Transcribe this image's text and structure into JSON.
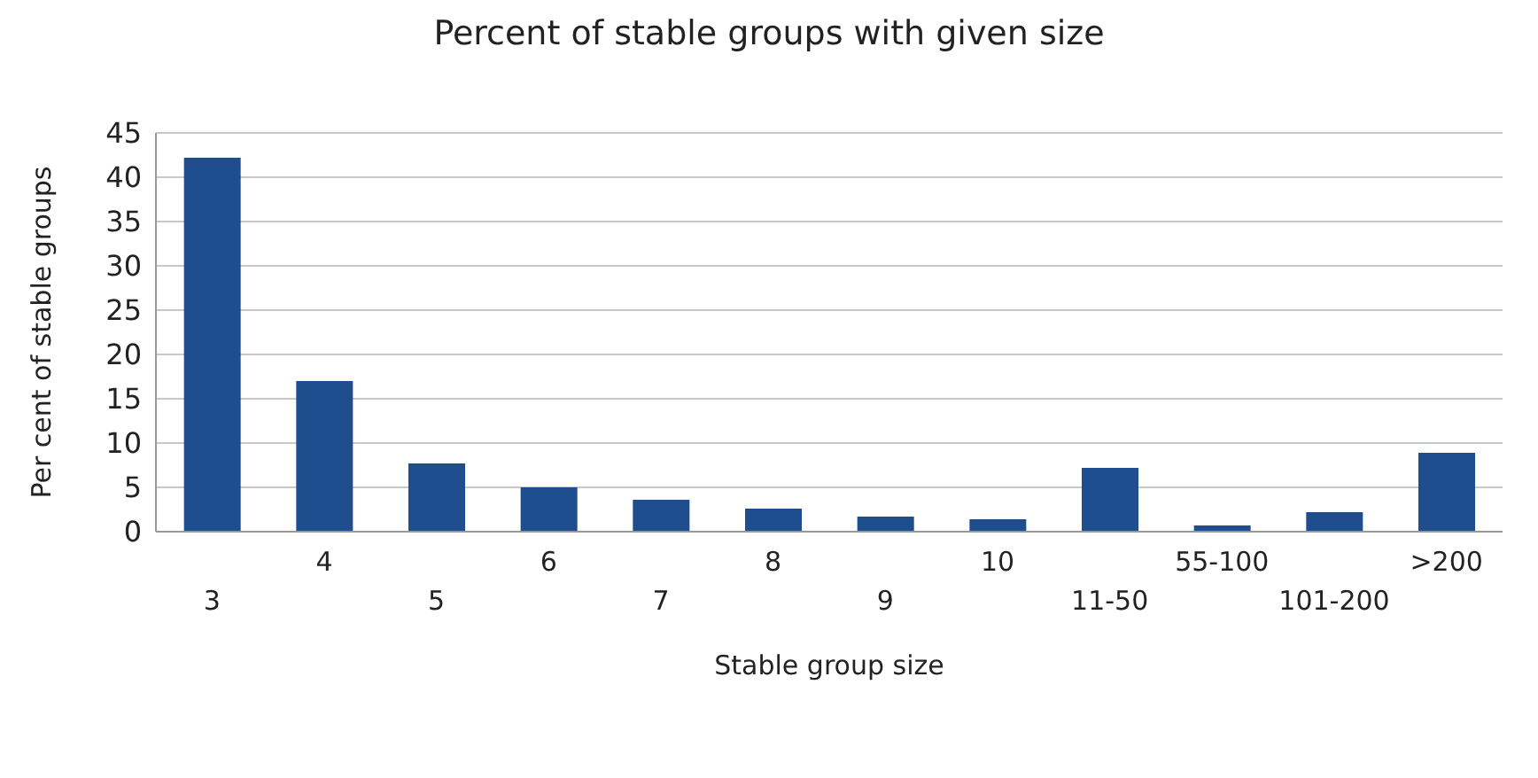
{
  "chart_data": {
    "type": "bar",
    "title": "Percent of stable groups with given size",
    "xlabel": "Stable group size",
    "ylabel": "Per cent of stable groups",
    "categories": [
      "3",
      "4",
      "5",
      "6",
      "7",
      "8",
      "9",
      "10",
      "11-50",
      "55-100",
      "101-200",
      ">200"
    ],
    "values": [
      42.2,
      17.0,
      7.7,
      5.0,
      3.6,
      2.6,
      1.7,
      1.4,
      7.2,
      0.7,
      2.2,
      8.9
    ],
    "color": "#1f4e8f",
    "ylim": [
      0,
      45
    ],
    "yticks": [
      0,
      5,
      10,
      15,
      20,
      25,
      30,
      35,
      40,
      45
    ],
    "grid": "y"
  }
}
